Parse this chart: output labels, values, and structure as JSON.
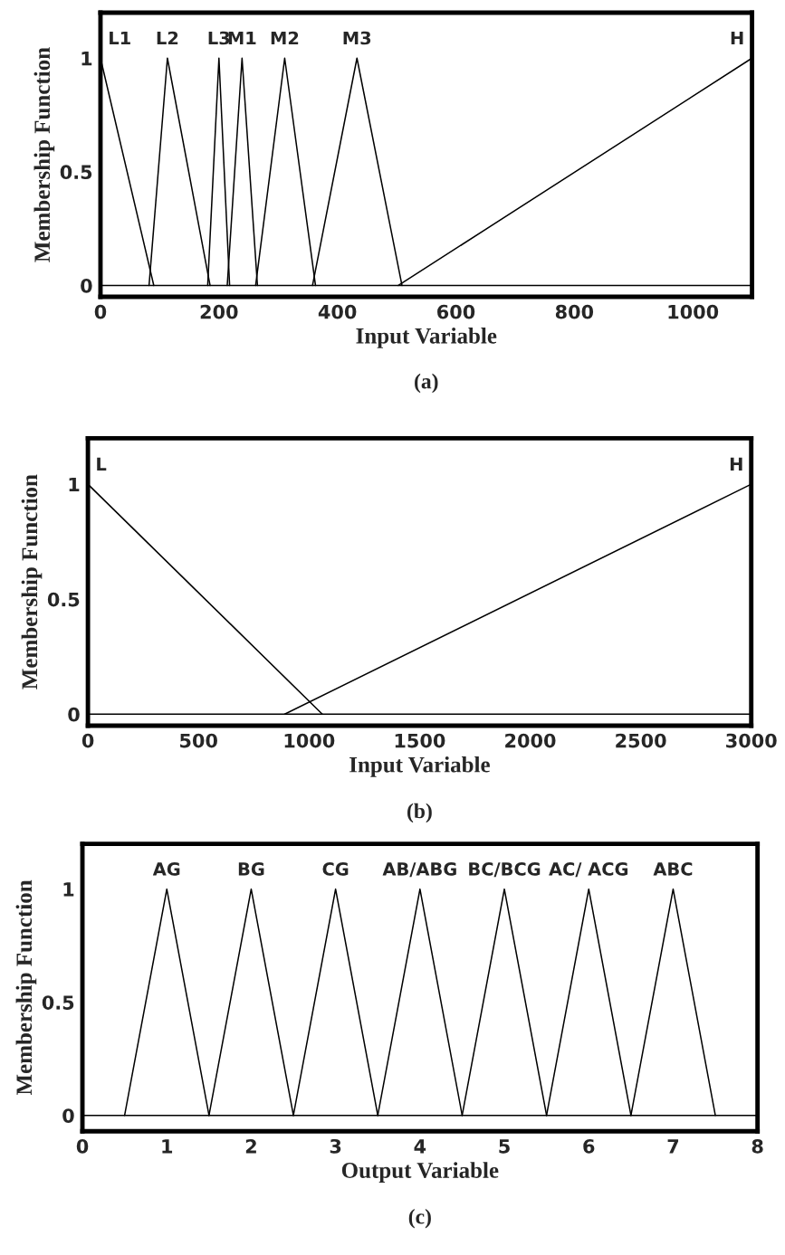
{
  "chart_data": [
    {
      "type": "line",
      "xlabel": "Input Variable",
      "ylabel": "Membership Function",
      "annotations": [
        "(a)"
      ],
      "xlim": [
        0,
        1100
      ],
      "ylim": [
        -0.05,
        1.2
      ],
      "xticks": [
        0,
        200,
        400,
        600,
        800,
        1000
      ],
      "yticks": [
        0,
        0.5,
        1
      ],
      "grid": false,
      "legend": false,
      "marker": "none",
      "line_style": "solid",
      "ref_lines": [
        {
          "axis": "y",
          "value": 0,
          "color": "#000000"
        }
      ],
      "series": [
        {
          "name": "L1",
          "color": "#000000",
          "x": [
            0,
            90
          ],
          "values": [
            1,
            0
          ]
        },
        {
          "name": "L2",
          "color": "#000000",
          "x": [
            82,
            113,
            185
          ],
          "values": [
            0,
            1,
            0
          ]
        },
        {
          "name": "L3",
          "color": "#000000",
          "x": [
            181,
            200,
            218
          ],
          "values": [
            0,
            1,
            0
          ]
        },
        {
          "name": "M1",
          "color": "#000000",
          "x": [
            214,
            239,
            265
          ],
          "values": [
            0,
            1,
            0
          ]
        },
        {
          "name": "M2",
          "color": "#000000",
          "x": [
            262,
            311,
            363
          ],
          "values": [
            0,
            1,
            0
          ]
        },
        {
          "name": "M3",
          "color": "#000000",
          "x": [
            358,
            433,
            509
          ],
          "values": [
            0,
            1,
            0
          ]
        },
        {
          "name": "H",
          "color": "#000000",
          "x": [
            503,
            1100
          ],
          "values": [
            0,
            1
          ]
        }
      ]
    },
    {
      "type": "line",
      "xlabel": "Input Variable",
      "ylabel": "Membership Function",
      "annotations": [
        "(b)"
      ],
      "xlim": [
        0,
        3000
      ],
      "ylim": [
        -0.05,
        1.2
      ],
      "xticks": [
        0,
        500,
        1000,
        1500,
        2000,
        2500,
        3000
      ],
      "yticks": [
        0,
        0.5,
        1
      ],
      "grid": false,
      "legend": false,
      "marker": "none",
      "line_style": "solid",
      "ref_lines": [
        {
          "axis": "y",
          "value": 0,
          "color": "#000000"
        }
      ],
      "series": [
        {
          "name": "L",
          "color": "#000000",
          "x": [
            0,
            1060
          ],
          "values": [
            1,
            0
          ]
        },
        {
          "name": "H",
          "color": "#000000",
          "x": [
            890,
            3000
          ],
          "values": [
            0,
            1
          ]
        }
      ]
    },
    {
      "type": "line",
      "xlabel": "Output Variable",
      "ylabel": "Membership Function",
      "annotations": [
        "(c)"
      ],
      "xlim": [
        0,
        8
      ],
      "ylim": [
        -0.07,
        1.2
      ],
      "xticks": [
        0,
        1,
        2,
        3,
        4,
        5,
        6,
        7,
        8
      ],
      "yticks": [
        0,
        0.5,
        1
      ],
      "grid": false,
      "legend": false,
      "marker": "none",
      "line_style": "solid",
      "ref_lines": [
        {
          "axis": "y",
          "value": 0,
          "color": "#000000"
        }
      ],
      "series": [
        {
          "name": "AG",
          "color": "#000000",
          "x": [
            0.5,
            1,
            1.5
          ],
          "values": [
            0,
            1,
            0
          ]
        },
        {
          "name": "BG",
          "color": "#000000",
          "x": [
            1.5,
            2,
            2.5
          ],
          "values": [
            0,
            1,
            0
          ]
        },
        {
          "name": "CG",
          "color": "#000000",
          "x": [
            2.5,
            3,
            3.5
          ],
          "values": [
            0,
            1,
            0
          ]
        },
        {
          "name": "AB/ABG",
          "color": "#000000",
          "x": [
            3.5,
            4,
            4.5
          ],
          "values": [
            0,
            1,
            0
          ]
        },
        {
          "name": "BC/BCG",
          "color": "#000000",
          "x": [
            4.5,
            5,
            5.5
          ],
          "values": [
            0,
            1,
            0
          ]
        },
        {
          "name": "AC/ ACG",
          "color": "#000000",
          "x": [
            5.5,
            6,
            6.5
          ],
          "values": [
            0,
            1,
            0
          ]
        },
        {
          "name": "ABC",
          "color": "#000000",
          "x": [
            6.5,
            7,
            7.5
          ],
          "values": [
            0,
            1,
            0
          ]
        }
      ]
    }
  ]
}
